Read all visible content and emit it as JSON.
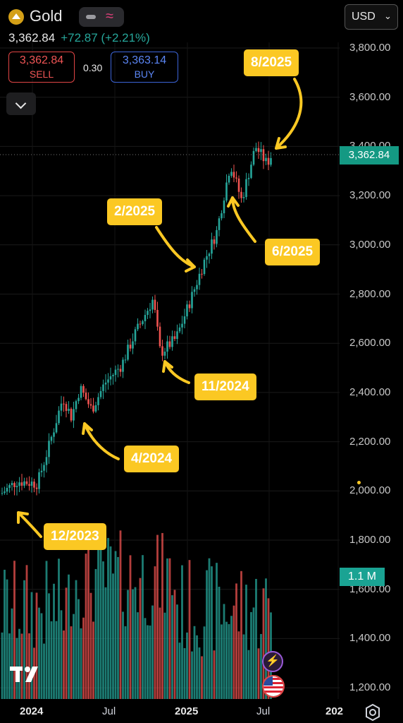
{
  "header": {
    "symbol": "Gold",
    "icon": "gold-bars-icon",
    "last_price": "3,362.84",
    "change": "+72.87 (+2.21%)",
    "sell_price": "3,362.84",
    "sell_label": "SELL",
    "spread": "0.30",
    "buy_price": "3,363.14",
    "buy_label": "BUY",
    "currency": "USD",
    "up_color": "#26a69a",
    "down_color": "#ef5350"
  },
  "y_axis": {
    "ticks": [
      "3,800.00",
      "3,600.00",
      "3,400.00",
      "3,200.00",
      "3,000.00",
      "2,800.00",
      "2,600.00",
      "2,400.00",
      "2,200.00",
      "2,000.00",
      "1,800.00",
      "1,600.00",
      "1,400.00",
      "1,200.00"
    ],
    "current_price_label": "3,362.84",
    "volume_label": "1.1 M"
  },
  "x_axis": {
    "ticks": [
      {
        "label": "2024",
        "bold": true
      },
      {
        "label": "Jul",
        "bold": false
      },
      {
        "label": "2025",
        "bold": true
      },
      {
        "label": "Jul",
        "bold": false
      },
      {
        "label": "202",
        "bold": true
      }
    ]
  },
  "annotations": [
    "8/2025",
    "2/2025",
    "6/2025",
    "11/2024",
    "4/2024",
    "12/2023"
  ],
  "chart_data": {
    "type": "candlestick",
    "title": "",
    "ylim": [
      1200,
      3800
    ],
    "series": [
      {
        "date": "2023-11-27",
        "price": 1990
      },
      {
        "date": "2024-01-01",
        "price": 2040
      },
      {
        "date": "2024-02-15",
        "price": 2030
      },
      {
        "date": "2024-03-10",
        "price": 2170
      },
      {
        "date": "2024-04-12",
        "price": 2380
      },
      {
        "date": "2024-05-01",
        "price": 2300
      },
      {
        "date": "2024-05-20",
        "price": 2420
      },
      {
        "date": "2024-06-15",
        "price": 2330
      },
      {
        "date": "2024-07-15",
        "price": 2440
      },
      {
        "date": "2024-08-20",
        "price": 2510
      },
      {
        "date": "2024-09-20",
        "price": 2640
      },
      {
        "date": "2024-10-30",
        "price": 2780
      },
      {
        "date": "2024-11-15",
        "price": 2560
      },
      {
        "date": "2024-12-20",
        "price": 2620
      },
      {
        "date": "2025-01-20",
        "price": 2770
      },
      {
        "date": "2025-02-20",
        "price": 2930
      },
      {
        "date": "2025-03-20",
        "price": 3050
      },
      {
        "date": "2025-04-20",
        "price": 3330
      },
      {
        "date": "2025-05-15",
        "price": 3180
      },
      {
        "date": "2025-06-15",
        "price": 3400
      },
      {
        "date": "2025-07-10",
        "price": 3330
      },
      {
        "date": "2025-07-20",
        "price": 3362.84
      }
    ]
  }
}
